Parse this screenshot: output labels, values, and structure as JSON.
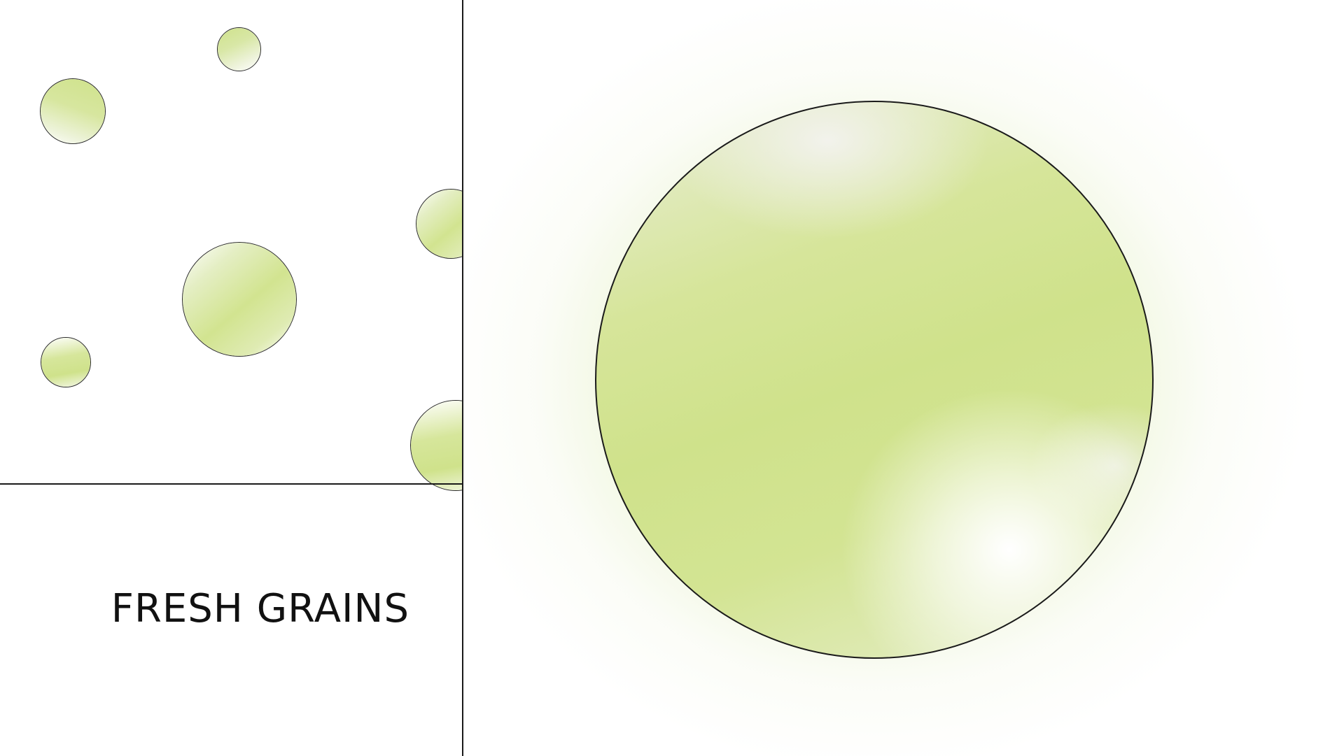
{
  "title": "FRESH GRAINS",
  "colors": {
    "accent": "#cfe28b",
    "outline": "#1a1a1a",
    "background": "#ffffff"
  }
}
